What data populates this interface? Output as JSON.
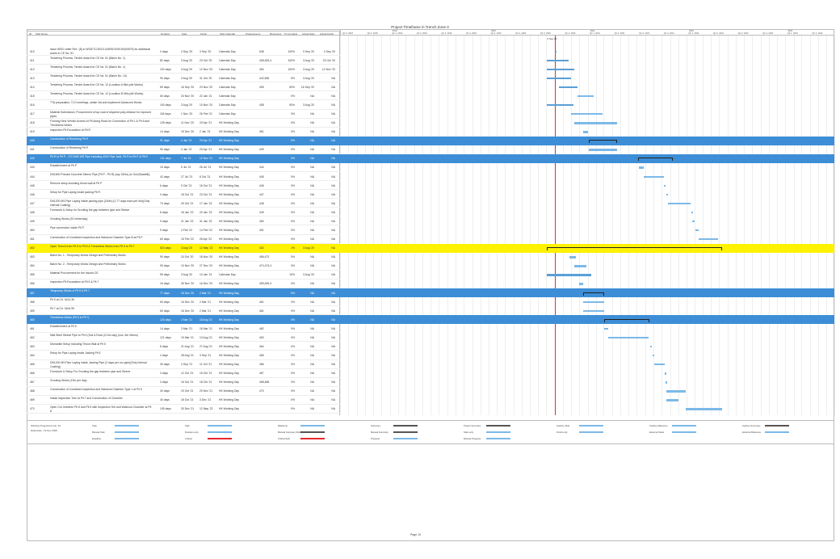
{
  "project_title": "Project Timeframe in Trench Zone 0",
  "columns": {
    "id": "ID",
    "task_name": "Task Name",
    "duration": "Duration",
    "start": "Start",
    "finish": "Finish",
    "calendar": "Task Calendar",
    "predecessors": "Predecessors",
    "resources": "Resources",
    "pct": "% Complete",
    "actual_start": "Actual Start",
    "actual_finish": "Actual Finish"
  },
  "timeline_years": [
    "2019",
    "2020",
    "2021",
    "2022",
    "2023"
  ],
  "timeline_quarters": [
    "Qtr 3, 2018",
    "Qtr 4, 2018",
    "Qtr 1, 2019",
    "Qtr 2, 2019",
    "Qtr 3, 2019",
    "Qtr 4, 2019",
    "Qtr 1, 2020",
    "Qtr 2, 2020",
    "Qtr 3, 2020",
    "Qtr 4, 2020",
    "Qtr 1, 2021",
    "Qtr 2, 2021",
    "Qtr 3, 2021",
    "Qtr 4, 2021",
    "Qtr 1, 2022",
    "Qtr 2, 2022",
    "Qtr 3, 2022",
    "Qtr 4, 2022",
    "Qtr 1, 2023",
    "Qtr 2, 2023"
  ],
  "today_label": "3 Sep 20",
  "rows": [
    {
      "id": "410",
      "name": "Issue WSD Letter Ref.: (8) in WSD/TC/2021/14/WSD/19/019/(00575) for additional works in CE No. 51",
      "dur": "0 days",
      "start": "3 Sep '20",
      "finish": "3 Sep '20",
      "cal": "Calendar Day",
      "pre": "",
      "res": "548",
      "pct": "100%",
      "as": "3 Sep '20",
      "af": "4 Sep '20",
      "style": ""
    },
    {
      "id": "411",
      "name": "Tendering Process, Tender Award for CE No. 51 (Batch No. 1)",
      "dur": "82 days",
      "start": "3 Aug '20",
      "finish": "23 Oct '20",
      "cal": "Calendar Day",
      "pre": "429",
      "res": "408,453,4",
      "pct": "100%",
      "as": "3 Aug '20",
      "af": "23 Oct '20",
      "style": ""
    },
    {
      "id": "412",
      "name": "Tendering Process, Tender Award for CE No. 51 (Batch No. 1)",
      "dur": "102 days",
      "start": "3 Aug '20",
      "finish": "12 Nov '20",
      "cal": "Calendar Day",
      "pre": "429",
      "res": "454",
      "pct": "100%",
      "as": "3 Aug '20",
      "af": "12 Nov '20",
      "style": ""
    },
    {
      "id": "413",
      "name": "Tendering Process, Tender Award for CE No. 51 (Batch No. 10)",
      "dur": "90 days",
      "start": "3 Aug '20",
      "finish": "31 Oct '20",
      "cal": "Calendar Day",
      "pre": "429",
      "res": "442,556",
      "pct": "5%",
      "as": "3 Aug '20",
      "af": "NA",
      "style": ""
    },
    {
      "id": "414",
      "name": "Tendering Process, Tender Award for CE No. 12 (Location A Mini-pile Works)",
      "dur": "69 days",
      "start": "16 Sep '20",
      "finish": "23 Nov '20",
      "cal": "Calendar Day",
      "pre": "",
      "res": "495",
      "pct": "50%",
      "as": "16 Sep '20",
      "af": "NA",
      "style": ""
    },
    {
      "id": "415",
      "name": "Tendering Process, Tender Award for CE No. 12 (Location B Mini-pile Works)",
      "dur": "60 days",
      "start": "24 Nov '20",
      "finish": "22 Jan '21",
      "cal": "Calendar Day",
      "pre": "496",
      "res": "",
      "pct": "0%",
      "as": "NA",
      "af": "NA",
      "style": ""
    },
    {
      "id": "416",
      "name": "TTA preparation, TLO meetings, obtain NA and implement Advanced Works",
      "dur": "100 days",
      "start": "3 Aug '20",
      "finish": "10 Nov '20",
      "cal": "Calendar Day",
      "pre": "429",
      "res": "408",
      "pct": "50%",
      "as": "3 Aug '20",
      "af": "NA",
      "style": ""
    },
    {
      "id": "417",
      "name": "Material Submission, Procurement of top coat of dispersit poly-reliance for exposed pipes",
      "dur": "118 days",
      "start": "1 Nov '20",
      "finish": "26 Feb '21",
      "cal": "Calendar Day",
      "pre": "433",
      "res": "",
      "pct": "0%",
      "as": "NA",
      "af": "NA",
      "style": ""
    },
    {
      "id": "418",
      "name": "Forming New Vehicle Access At Pit Along Road for Connection of Pit 1 & Pit 5 and Trenchless Works",
      "dur": "128 days",
      "start": "11 Nov '20",
      "finish": "20 Apr '21",
      "cal": "HK Working Day",
      "pre": "436,431",
      "res": "",
      "pct": "0%",
      "as": "NA",
      "af": "NA",
      "style": ""
    },
    {
      "id": "419",
      "name": "Inspection Pit Excavation at Pit R",
      "dur": "14 days",
      "start": "15 Dec '20",
      "finish": "2 Jan '21",
      "cal": "HK Working Day",
      "pre": "",
      "res": "461",
      "pct": "0%",
      "as": "NA",
      "af": "NA",
      "style": ""
    },
    {
      "id": "440",
      "name": "Construction of Receiving Pit R",
      "dur": "91 days",
      "start": "4 Jan '21",
      "finish": "20 Apr '21",
      "cal": "HK Working Day",
      "pre": "",
      "res": "",
      "pct": "0%",
      "as": "NA",
      "af": "NA",
      "style": "blue"
    },
    {
      "id": "441",
      "name": "Construction of Receiving Pit R",
      "dur": "90 days",
      "start": "4 Jan '21",
      "finish": "20 Apr '21",
      "cal": "HK Working Day",
      "pre": "439",
      "res": "449",
      "pct": "0%",
      "as": "NA",
      "af": "NA",
      "style": ""
    },
    {
      "id": "442",
      "name": "Pit R to Pit P - 1TC1600 MS Pipe including 4000 Pipe Jack, Pit R to Pit P & Pit R",
      "dur": "131 days",
      "start": "7 Jul '21",
      "finish": "12 Nov '21",
      "cal": "HK Working Day",
      "pre": "",
      "res": "",
      "pct": "0%",
      "as": "NA",
      "af": "NA",
      "style": "blue2"
    },
    {
      "id": "443",
      "name": "Establishment at Pit P",
      "dur": "15 days",
      "start": "9 Jul '21",
      "finish": "26 Jul '21",
      "cal": "HK Working Day",
      "pre": "441,377",
      "res": "444",
      "pct": "0%",
      "as": "NA",
      "af": "NA",
      "style": ""
    },
    {
      "id": "444",
      "name": "DN1600 Precast Concrete Sleeve Pipe (Pit P - Pit R) (say 240m) (in Soil (Backfill))",
      "dur": "42 days",
      "start": "27 Jul '21",
      "finish": "8 Oct '21",
      "cal": "HK Working Day",
      "pre": "443",
      "res": "445",
      "pct": "0%",
      "as": "NA",
      "af": "NA",
      "style": ""
    },
    {
      "id": "445",
      "name": "Remove setup including thrust wall at Pit P",
      "dur": "6 days",
      "start": "9 Oct '21",
      "finish": "16 Oct '21",
      "cal": "HK Working Day",
      "pre": "444",
      "res": "446",
      "pct": "0%",
      "as": "NA",
      "af": "NA",
      "style": ""
    },
    {
      "id": "446",
      "name": "Setup for Pipe Laying inside jacking Pit R",
      "dur": "0 days",
      "start": "18 Oct '21",
      "finish": "23 Oct '21",
      "cal": "HK Working Day",
      "pre": "445",
      "res": "447",
      "pct": "0%",
      "as": "NA",
      "af": "NA",
      "style": ""
    },
    {
      "id": "447",
      "name": "DN1200 MS Pipe Laying inside jacking pipe (240m) (2.77 days each per 6m)(Only Internal Coating)",
      "dur": "73 days",
      "start": "25 Oct '21",
      "finish": "17 Jan '22",
      "cal": "HK Working Day",
      "pre": "446",
      "res": "448",
      "pct": "0%",
      "as": "NA",
      "af": "NA",
      "style": ""
    },
    {
      "id": "448",
      "name": "Formwork & Setup for Grouting the gap between pipe and Sleeve",
      "dur": "8 days",
      "start": "18 Jan '22",
      "finish": "20 Jan '22",
      "cal": "HK Working Day",
      "pre": "447",
      "res": "449",
      "pct": "0%",
      "as": "NA",
      "af": "NA",
      "style": ""
    },
    {
      "id": "449",
      "name": "Grouting Works (30 metre/day)",
      "dur": "9 days",
      "start": "21 Jan '22",
      "finish": "31 Jan '22",
      "cal": "HK Working Day",
      "pre": "448",
      "res": "450",
      "pct": "0%",
      "as": "NA",
      "af": "NA",
      "style": ""
    },
    {
      "id": "450",
      "name": "Pipe connection inside Pit P",
      "dur": "9 days",
      "start": "4 Feb '22",
      "finish": "14 Feb '22",
      "cal": "HK Working Day",
      "pre": "449",
      "res": "451",
      "pct": "0%",
      "as": "NA",
      "af": "NA",
      "style": ""
    },
    {
      "id": "451",
      "name": "Construction of Combined Inspection and Washout Chamber Type B at Pit P",
      "dur": "60 days",
      "start": "15 Feb '22",
      "finish": "26 Apr '22",
      "cal": "HK Working Day",
      "pre": "450",
      "res": "",
      "pct": "0%",
      "as": "NA",
      "af": "NA",
      "style": ""
    },
    {
      "id": "452",
      "name": "Open Trench from Pit 8 to Pit 5 & Trenchless Works from Pit 5 to Pit 7",
      "dur": "524 days",
      "start": "3 Aug '20",
      "finish": "12 May '22",
      "cal": "HK Working Day",
      "pre": "",
      "res": "432",
      "pct": "1%",
      "as": "3 Aug '20",
      "af": "NA",
      "style": "yellow"
    },
    {
      "id": "453",
      "name": "Batch No. 1 - Temporary Works Design and Preliminary Works",
      "dur": "90 days",
      "start": "24 Oct '20",
      "finish": "18 Nov '20",
      "cal": "HK Working Day",
      "pre": "431",
      "res": "456,473",
      "pct": "0%",
      "as": "NA",
      "af": "NA",
      "style": ""
    },
    {
      "id": "454",
      "name": "Batch No. 2 - Temporary Works Design and Preliminary Works",
      "dur": "90 days",
      "start": "13 Nov '20",
      "finish": "27 Dec '20",
      "cal": "HK Working Day",
      "pre": "430",
      "res": "474,473,4",
      "pct": "0%",
      "as": "NA",
      "af": "NA",
      "style": ""
    },
    {
      "id": "455",
      "name": "Material Procurement for the Issued CE",
      "dur": "59 days",
      "start": "3 Aug '20",
      "finish": "13 Jan '21",
      "cal": "Calendar Day",
      "pre": "430",
      "res": "",
      "pct": "10%",
      "as": "3 Aug '20",
      "af": "NA",
      "style": ""
    },
    {
      "id": "456",
      "name": "Inspection Pit Excavation at Pit 5 & Pit 7",
      "dur": "16 days",
      "start": "30 Nov '20",
      "finish": "16 Dec '20",
      "cal": "HK Working Day",
      "pre": "454",
      "res": "459,459,4",
      "pct": "0%",
      "as": "NA",
      "af": "NA",
      "style": ""
    },
    {
      "id": "457",
      "name": "Temporary Works of Pit 5 & Pit 7",
      "dur": "77 days",
      "start": "16 Dec '20",
      "finish": "2 Mar '21",
      "cal": "HK Working Day",
      "pre": "",
      "res": "",
      "pct": "0%",
      "as": "NA",
      "af": "NA",
      "style": "blue"
    },
    {
      "id": "458",
      "name": "Pit 5 at Ch. 0414.36",
      "dur": "60 days",
      "start": "16 Dec '20",
      "finish": "2 Mar '21",
      "cal": "HK Working Day",
      "pre": "456",
      "res": "461",
      "pct": "0%",
      "as": "NA",
      "af": "NA",
      "style": ""
    },
    {
      "id": "459",
      "name": "Pit 7 at Ch. 0404.99",
      "dur": "60 days",
      "start": "16 Dec '20",
      "finish": "2 Mar '21",
      "cal": "HK Working Day",
      "pre": "456",
      "res": "461",
      "pct": "0%",
      "as": "NA",
      "af": "NA",
      "style": ""
    },
    {
      "id": "460",
      "name": "Trenchless Works (Pit 5 to Pit 7)",
      "dur": "125 days",
      "start": "3 Mar '21",
      "finish": "18 Aug '21",
      "cal": "HK Working Day",
      "pre": "",
      "res": "",
      "pct": "0%",
      "as": "NA",
      "af": "NA",
      "style": "blue"
    },
    {
      "id": "461",
      "name": "Establishment at Pit 5",
      "dur": "14 days",
      "start": "3 Mar '21",
      "finish": "18 Mar '21",
      "cal": "HK Working Day",
      "pre": "458,459",
      "res": "462",
      "pct": "0%",
      "as": "NA",
      "af": "NA",
      "style": ""
    },
    {
      "id": "462",
      "name": "Mild Steel Sleeve Pipe to Pit 5 (Soil & Rock (0.2m/ day) (nos. 5m Stems)",
      "dur": "121 days",
      "start": "19 Mar '21",
      "finish": "13 Aug '21",
      "cal": "HK Working Day",
      "pre": "461",
      "res": "463",
      "pct": "0%",
      "as": "NA",
      "af": "NA",
      "style": ""
    },
    {
      "id": "463",
      "name": "Dismantle Setup Including Thrust Wall at Pit 5",
      "dur": "8 days",
      "start": "21 Aug '21",
      "finish": "27 Aug '21",
      "cal": "HK Working Day",
      "pre": "462",
      "res": "464",
      "pct": "0%",
      "as": "NA",
      "af": "NA",
      "style": ""
    },
    {
      "id": "464",
      "name": "Setup for Pipe Laying inside Jacking Pit 5",
      "dur": "4 days",
      "start": "28 Aug '21",
      "finish": "3 Sep '21",
      "cal": "HK Working Day",
      "pre": "463",
      "res": "465",
      "pct": "0%",
      "as": "NA",
      "af": "NA",
      "style": ""
    },
    {
      "id": "465",
      "name": "DN1200 MS Pipe Laying inside Jacking Pipe (2 days per run pipe)(Only Internal Coating)",
      "dur": "30 days",
      "start": "4 Sep '21",
      "finish": "11 Oct '21",
      "cal": "HK Working Day",
      "pre": "464",
      "res": "466",
      "pct": "0%",
      "as": "NA",
      "af": "NA",
      "style": ""
    },
    {
      "id": "466",
      "name": "Formwork & Setup For Grouting the gap between pipe and Sleeve",
      "dur": "3 days",
      "start": "12 Oct '21",
      "finish": "15 Oct '21",
      "cal": "HK Working Day",
      "pre": "465",
      "res": "467",
      "pct": "0%",
      "as": "NA",
      "af": "NA",
      "style": ""
    },
    {
      "id": "467",
      "name": "Grouting Works (10m per day)",
      "dur": "3 days",
      "start": "16 Oct '21",
      "finish": "18 Oct '21",
      "cal": "HK Working Day",
      "pre": "466",
      "res": "468,468",
      "pct": "0%",
      "as": "NA",
      "af": "NA",
      "style": ""
    },
    {
      "id": "468",
      "name": "Construction of Combined Inspection and Washout Chamber Type 1 at Pit 5",
      "dur": "40 days",
      "start": "19 Oct '21",
      "finish": "29 Dec '21",
      "cal": "HK Working Day",
      "pre": "467",
      "res": "470",
      "pct": "0%",
      "as": "NA",
      "af": "NA",
      "style": ""
    },
    {
      "id": "469",
      "name": "Install Inspection Tree at Pit 7 and Construction of Chamber",
      "dur": "40 days",
      "start": "18 Oct '21",
      "finish": "3 Dec '21",
      "cal": "HK Working Day",
      "pre": "467",
      "res": "",
      "pct": "0%",
      "as": "NA",
      "af": "NA",
      "style": ""
    },
    {
      "id": "470",
      "name": "Open Cut, between Pit 8 and Pit 5 with Inspection Tee and Washout Chamber at Pit 8",
      "dur": "105 days",
      "start": "30 Dec '21",
      "finish": "12 May '22",
      "cal": "HK Working Day",
      "pre": "468",
      "res": "",
      "pct": "0%",
      "as": "NA",
      "af": "NA",
      "style": ""
    }
  ],
  "legend": {
    "program": "Working Programme No. 31",
    "date": "Data Date : 19 Nov 2020",
    "items": [
      "Task",
      "Split",
      "Milestone",
      "Summary",
      "Project Summary",
      "Inactive Task",
      "Inactive Milestone",
      "Inactive Summary",
      "Manual Task",
      "Duration-only",
      "Manual Summary Rollup",
      "Manual Summary",
      "Start-only",
      "Finish-only",
      "External Tasks",
      "External Milestone",
      "Deadline",
      "Critical",
      "Critical Split",
      "Progress",
      "Manual Progress"
    ]
  },
  "page_label": "Page 10"
}
